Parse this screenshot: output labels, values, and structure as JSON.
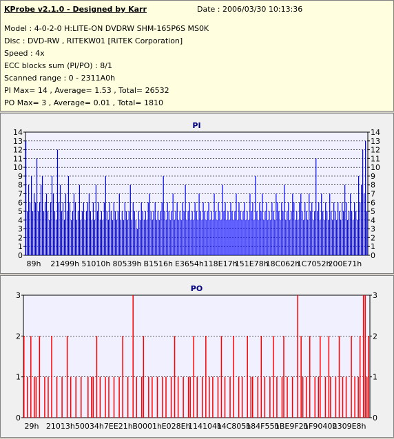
{
  "header": {
    "title": "KProbe v2.1.0 - Designed by Karr",
    "date": "Date : 2006/03/30 10:13:36",
    "lines": [
      "Model : 4-0-2-0 H:LITE-ON DVDRW SHM-165P6S MS0K",
      "Disc : DVD-RW , RITEKW01 [RiTEK Corporation]",
      "Speed : 4x",
      "ECC blocks sum (PI/PO) : 8/1",
      "Scanned range : 0 - 2311A0h",
      "PI Max= 14 , Average= 1.53 , Total= 26532",
      "PO Max= 3 , Average= 0.01 , Total= 1810"
    ]
  },
  "colors": {
    "pi": "#0000ff",
    "po": "#ff0000",
    "plot_bg": "#f0f0ff",
    "title": "#000080"
  },
  "chart_data": [
    {
      "type": "bar",
      "title": "PI",
      "ylim": [
        0,
        14
      ],
      "yticks": [
        0,
        1,
        2,
        3,
        4,
        5,
        6,
        7,
        8,
        9,
        10,
        11,
        12,
        13,
        14
      ],
      "xticks": [
        "89h",
        "21499h",
        "51010h",
        "80539h",
        "B1516h",
        "E3654h",
        "118E17h",
        "151E78h",
        "18C062h",
        "1C7052h",
        "200E71h"
      ],
      "grid": true,
      "series": [
        {
          "values": [
            13,
            5,
            8,
            6,
            9,
            5,
            7,
            6,
            11,
            5,
            6,
            8,
            9,
            5,
            6,
            7,
            5,
            4,
            6,
            9,
            7,
            5,
            4,
            12,
            6,
            8,
            5,
            6,
            4,
            7,
            5,
            9,
            6,
            4,
            5,
            7,
            6,
            4,
            5,
            8,
            4,
            5,
            6,
            4,
            5,
            6,
            7,
            5,
            4,
            6,
            4,
            8,
            5,
            6,
            4,
            5,
            4,
            6,
            9,
            5,
            4,
            6,
            5,
            4,
            6,
            5,
            4,
            5,
            7,
            4,
            5,
            4,
            6,
            5,
            4,
            5,
            8,
            4,
            6,
            5,
            4,
            3,
            5,
            4,
            6,
            5,
            4,
            5,
            4,
            6,
            7,
            5,
            4,
            5,
            6,
            4,
            5,
            4,
            5,
            6,
            9,
            5,
            4,
            6,
            5,
            4,
            5,
            7,
            4,
            5,
            6,
            4,
            5,
            4,
            6,
            5,
            8,
            4,
            5,
            6,
            4,
            5,
            4,
            6,
            5,
            4,
            7,
            5,
            4,
            6,
            5,
            4,
            5,
            6,
            4,
            5,
            4,
            7,
            5,
            4,
            6,
            5,
            4,
            8,
            5,
            6,
            4,
            5,
            4,
            6,
            5,
            4,
            5,
            7,
            4,
            6,
            5,
            4,
            5,
            6,
            4,
            5,
            4,
            7,
            5,
            6,
            4,
            9,
            5,
            4,
            6,
            5,
            7,
            4,
            5,
            6,
            4,
            5,
            4,
            6,
            5,
            4,
            7,
            6,
            5,
            4,
            6,
            5,
            8,
            4,
            5,
            6,
            4,
            5,
            7,
            6,
            4,
            5,
            4,
            6,
            7,
            5,
            4,
            6,
            5,
            4,
            7,
            5,
            6,
            4,
            5,
            11,
            5,
            6,
            4,
            7,
            5,
            4,
            6,
            5,
            4,
            7,
            5,
            4,
            6,
            5,
            4,
            6,
            5,
            4,
            6,
            5,
            8,
            6,
            4,
            5,
            7,
            5,
            4,
            6,
            5,
            4,
            9,
            6,
            8,
            12,
            7,
            13,
            5
          ]
        }
      ]
    },
    {
      "type": "bar",
      "title": "PO",
      "ylim": [
        0,
        3
      ],
      "yticks": [
        0,
        1,
        2,
        3
      ],
      "xticks": [
        "29h",
        "21013h",
        "50034h",
        "7EE21h",
        "B0001h",
        "E028Eh",
        "114104h",
        "14C805h",
        "184F55h",
        "1BE9F2h",
        "1F9040h",
        "2309E8h"
      ],
      "grid": true,
      "series": [
        {
          "values": [
            2,
            0,
            1,
            0,
            2,
            0,
            1,
            1,
            0,
            2,
            0,
            0,
            1,
            0,
            1,
            0,
            2,
            0,
            0,
            1,
            0,
            0,
            1,
            0,
            0,
            2,
            0,
            1,
            0,
            0,
            1,
            0,
            0,
            1,
            0,
            0,
            0,
            1,
            0,
            1,
            1,
            0,
            2,
            0,
            1,
            0,
            0,
            1,
            0,
            1,
            0,
            0,
            1,
            0,
            0,
            1,
            0,
            2,
            0,
            0,
            1,
            0,
            0,
            3,
            0,
            1,
            0,
            0,
            1,
            2,
            0,
            0,
            1,
            0,
            1,
            0,
            0,
            1,
            0,
            0,
            1,
            0,
            1,
            0,
            0,
            1,
            0,
            2,
            0,
            1,
            0,
            0,
            1,
            0,
            0,
            1,
            1,
            0,
            2,
            0,
            1,
            0,
            0,
            1,
            0,
            2,
            0,
            1,
            0,
            1,
            0,
            0,
            1,
            0,
            2,
            0,
            1,
            0,
            0,
            1,
            0,
            2,
            0,
            0,
            1,
            0,
            1,
            0,
            0,
            2,
            0,
            1,
            1,
            0,
            0,
            1,
            0,
            2,
            0,
            1,
            0,
            0,
            1,
            0,
            2,
            0,
            1,
            0,
            0,
            1,
            2,
            0,
            1,
            0,
            0,
            1,
            0,
            0,
            3,
            0,
            2,
            1,
            0,
            1,
            0,
            2,
            0,
            0,
            1,
            0,
            1,
            2,
            0,
            0,
            1,
            0,
            2,
            1,
            0,
            0,
            1,
            0,
            2,
            0,
            1,
            0,
            1,
            0,
            0,
            2,
            0,
            1,
            0,
            1,
            2,
            0,
            3,
            3,
            1,
            2
          ]
        }
      ]
    }
  ]
}
